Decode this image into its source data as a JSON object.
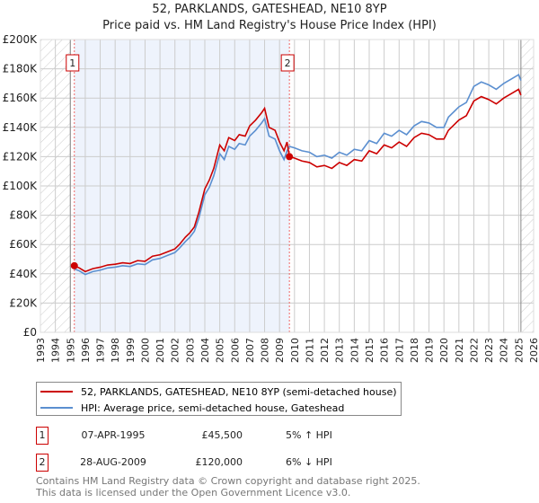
{
  "chart_data": {
    "type": "line",
    "title": "52, PARKLANDS, GATESHEAD, NE10 8YP",
    "subtitle": "Price paid vs. HM Land Registry's House Price Index (HPI)",
    "xlim": [
      1993,
      2026
    ],
    "ylim": [
      0,
      200000
    ],
    "x_ticks": [
      "1993",
      "1994",
      "1995",
      "1996",
      "1997",
      "1998",
      "1999",
      "2000",
      "2001",
      "2002",
      "2003",
      "2004",
      "2005",
      "2006",
      "2007",
      "2008",
      "2009",
      "2010",
      "2011",
      "2012",
      "2013",
      "2014",
      "2015",
      "2016",
      "2017",
      "2018",
      "2019",
      "2020",
      "2021",
      "2022",
      "2023",
      "2024",
      "2025",
      "2026"
    ],
    "y_ticks": [
      "£0",
      "£20K",
      "£40K",
      "£60K",
      "£80K",
      "£100K",
      "£120K",
      "£140K",
      "£160K",
      "£180K",
      "£200K"
    ],
    "grid": true,
    "series": [
      {
        "name": "52, PARKLANDS, GATESHEAD, NE10 8YP (semi-detached house)",
        "color": "#cc0000",
        "x": [
          1995.27,
          1995.6,
          1996,
          1996.5,
          1997,
          1997.5,
          1998,
          1998.5,
          1999,
          1999.5,
          2000,
          2000.5,
          2001,
          2001.5,
          2002,
          2002.3,
          2002.7,
          2003,
          2003.3,
          2003.6,
          2004,
          2004.3,
          2004.6,
          2005,
          2005.3,
          2005.6,
          2006,
          2006.3,
          2006.7,
          2007,
          2007.4,
          2007.8,
          2008,
          2008.3,
          2008.7,
          2009,
          2009.3,
          2009.5,
          2009.66,
          2010,
          2010.5,
          2011,
          2011.5,
          2012,
          2012.5,
          2013,
          2013.5,
          2014,
          2014.5,
          2015,
          2015.5,
          2016,
          2016.5,
          2017,
          2017.5,
          2018,
          2018.5,
          2019,
          2019.5,
          2020,
          2020.3,
          2020.7,
          2021,
          2021.5,
          2022,
          2022.5,
          2023,
          2023.5,
          2024,
          2024.5,
          2025,
          2025.15
        ],
        "y": [
          45500,
          44000,
          41500,
          43500,
          44500,
          46000,
          46500,
          47500,
          47000,
          49000,
          48500,
          52000,
          53000,
          55000,
          57000,
          60000,
          65000,
          68000,
          72000,
          82000,
          98000,
          104000,
          112000,
          128000,
          124000,
          133000,
          131000,
          135000,
          134000,
          141000,
          145000,
          150000,
          153000,
          140000,
          138000,
          130000,
          124000,
          130000,
          120000,
          119000,
          117000,
          116000,
          113000,
          114000,
          112000,
          116000,
          114000,
          118000,
          117000,
          124000,
          122000,
          128000,
          126000,
          130000,
          127000,
          133000,
          136000,
          135000,
          132000,
          132000,
          138000,
          142000,
          145000,
          148000,
          158000,
          161000,
          159000,
          156000,
          160000,
          163000,
          166000,
          162000
        ]
      },
      {
        "name": "HPI: Average price, semi-detached house, Gateshead",
        "color": "#5b8fd0",
        "x": [
          1995.27,
          1995.6,
          1996,
          1996.5,
          1997,
          1997.5,
          1998,
          1998.5,
          1999,
          1999.5,
          2000,
          2000.5,
          2001,
          2001.5,
          2002,
          2002.3,
          2002.7,
          2003,
          2003.3,
          2003.6,
          2004,
          2004.3,
          2004.6,
          2005,
          2005.3,
          2005.6,
          2006,
          2006.3,
          2006.7,
          2007,
          2007.4,
          2007.8,
          2008,
          2008.3,
          2008.7,
          2009,
          2009.3,
          2009.5,
          2009.66,
          2010,
          2010.5,
          2011,
          2011.5,
          2012,
          2012.5,
          2013,
          2013.5,
          2014,
          2014.5,
          2015,
          2015.5,
          2016,
          2016.5,
          2017,
          2017.5,
          2018,
          2018.5,
          2019,
          2019.5,
          2020,
          2020.3,
          2020.7,
          2021,
          2021.5,
          2022,
          2022.5,
          2023,
          2023.5,
          2024,
          2024.5,
          2025,
          2025.15
        ],
        "y": [
          43300,
          42000,
          39500,
          41500,
          42500,
          44000,
          44500,
          45500,
          45000,
          46800,
          46300,
          49500,
          50500,
          52500,
          54500,
          57500,
          62000,
          65000,
          69000,
          78000,
          94000,
          99000,
          107000,
          122000,
          118000,
          127000,
          125000,
          129000,
          128000,
          134000,
          138000,
          143000,
          146000,
          134000,
          132000,
          124000,
          118000,
          124000,
          127000,
          126000,
          124000,
          123000,
          120000,
          121000,
          119000,
          123000,
          121000,
          125000,
          124000,
          131000,
          129000,
          136000,
          134000,
          138000,
          135000,
          141000,
          144000,
          143000,
          140000,
          140000,
          147000,
          151000,
          154000,
          157000,
          168000,
          171000,
          169000,
          166000,
          170000,
          173000,
          176000,
          172000
        ]
      }
    ],
    "annotations": [
      {
        "label": "1",
        "x": 1995.27,
        "y": 45500
      },
      {
        "label": "2",
        "x": 2009.66,
        "y": 120000
      }
    ],
    "hatched_before": 1995,
    "hatched_after": 2025.15
  },
  "legend": {
    "property": "52, PARKLANDS, GATESHEAD, NE10 8YP (semi-detached house)",
    "hpi": "HPI: Average price, semi-detached house, Gateshead"
  },
  "sales": [
    {
      "num": "1",
      "date": "07-APR-1995",
      "price": "£45,500",
      "hpi": "5% ↑ HPI"
    },
    {
      "num": "2",
      "date": "28-AUG-2009",
      "price": "£120,000",
      "hpi": "6% ↓ HPI"
    }
  ],
  "footer": {
    "line1": "Contains HM Land Registry data © Crown copyright and database right 2025.",
    "line2": "This data is licensed under the Open Government Licence v3.0."
  }
}
